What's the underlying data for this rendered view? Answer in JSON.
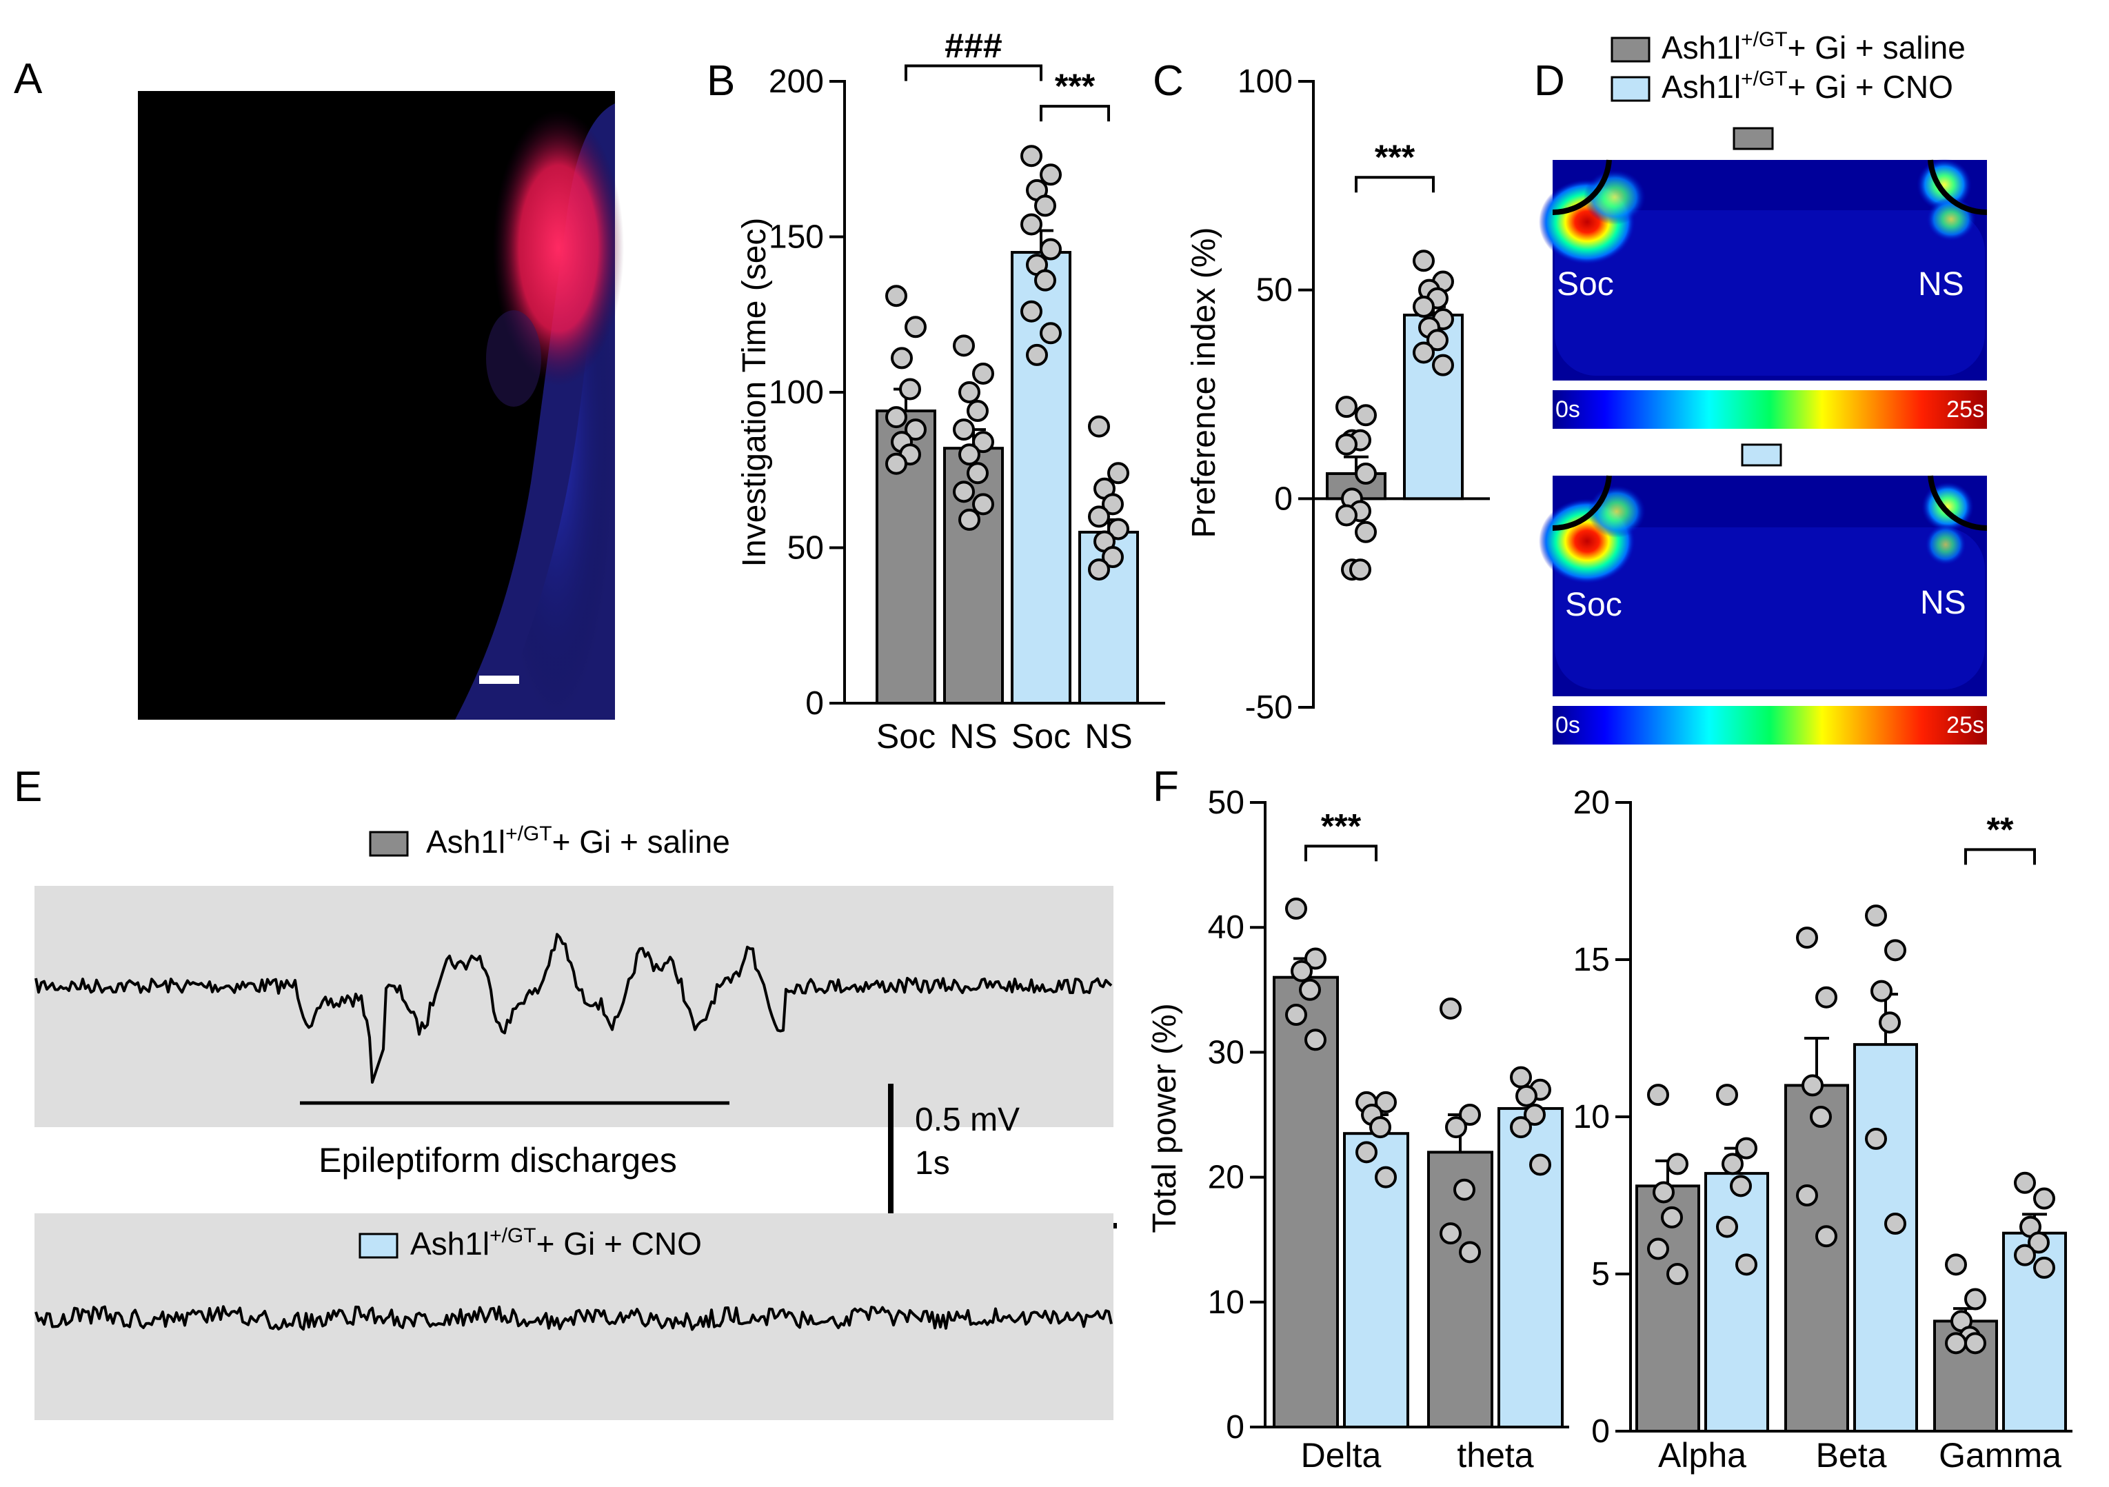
{
  "colors": {
    "saline": "#8c8c8c",
    "cno": "#bfe3f9",
    "trace_bg": "#dedede",
    "dot_fill": "#c8c8c8",
    "stroke": "#000000"
  },
  "legend": {
    "saline_prefix": "Ash1l",
    "saline_sup": "+/GT",
    "saline_suffix": "+ Gi + saline",
    "cno_prefix": "Ash1l",
    "cno_sup": "+/GT",
    "cno_suffix": "+ Gi + CNO"
  },
  "panels": {
    "A": {
      "label": "A",
      "image": "fluorescence brain section"
    },
    "D": {
      "label": "D",
      "heatmaps": [
        {
          "group": "saline",
          "left_label": "Soc",
          "right_label": "NS",
          "scale_min": "0s",
          "scale_max": "25s"
        },
        {
          "group": "cno",
          "left_label": "Soc",
          "right_label": "NS",
          "scale_min": "0s",
          "scale_max": "25s"
        }
      ]
    },
    "E": {
      "label": "E",
      "annotation": "Epileptiform discharges",
      "scalebar_v": "0.5 mV",
      "scalebar_h": "1s"
    }
  },
  "chart_data": [
    {
      "panel": "B",
      "type": "bar",
      "title": "",
      "xlabel": "",
      "ylabel": "Investigation Time (sec)",
      "ylim": [
        0,
        200
      ],
      "yticks": [
        0,
        50,
        100,
        150,
        200
      ],
      "categories": [
        "Soc",
        "NS",
        "Soc",
        "NS"
      ],
      "groups": [
        "saline",
        "saline",
        "cno",
        "cno"
      ],
      "values": [
        94,
        82,
        145,
        55
      ],
      "errors": [
        7,
        6,
        7,
        4
      ],
      "points": [
        [
          131,
          121,
          111,
          101,
          92,
          88,
          84,
          80,
          77
        ],
        [
          115,
          106,
          100,
          94,
          88,
          84,
          80,
          74,
          68,
          64,
          59
        ],
        [
          176,
          170,
          165,
          160,
          154,
          146,
          141,
          136,
          126,
          119,
          112
        ],
        [
          89,
          74,
          69,
          64,
          60,
          56,
          52,
          47,
          43
        ]
      ],
      "significance": [
        {
          "from": 0,
          "to": 2,
          "label": "###",
          "level": 205
        },
        {
          "from": 2,
          "to": 3,
          "label": "***",
          "level": 192
        }
      ]
    },
    {
      "panel": "C",
      "type": "bar",
      "title": "",
      "xlabel": "",
      "ylabel": "Preference index (%)",
      "ylim": [
        -50,
        100
      ],
      "yticks": [
        -50,
        0,
        50,
        100
      ],
      "categories": [
        "",
        ""
      ],
      "groups": [
        "saline",
        "cno"
      ],
      "values": [
        6,
        44
      ],
      "errors": [
        4,
        2
      ],
      "points": [
        [
          22,
          20,
          14,
          14,
          13,
          6,
          0,
          -3,
          -4,
          -8,
          -17,
          -17
        ],
        [
          57,
          52,
          50,
          48,
          46,
          43,
          41,
          38,
          35,
          32
        ]
      ],
      "significance": [
        {
          "from": 0,
          "to": 1,
          "label": "***",
          "level": 77
        }
      ]
    },
    {
      "panel": "F",
      "type": "bar",
      "title": "",
      "xlabel": "",
      "ylabel": "Total power (%)",
      "ylim": [
        0,
        50
      ],
      "yticks": [
        0,
        10,
        20,
        30,
        40,
        50
      ],
      "categories": [
        "Delta",
        "theta"
      ],
      "series": [
        {
          "name": "saline",
          "values": [
            36,
            22
          ],
          "errors": [
            1.5,
            3
          ]
        },
        {
          "name": "cno",
          "values": [
            23.5,
            25.5
          ],
          "errors": [
            1.5,
            1.5
          ]
        }
      ],
      "points": [
        [
          [
            41.5,
            37.5,
            36.5,
            35,
            33,
            31
          ],
          [
            33.5,
            25,
            24,
            19,
            15.5,
            14
          ]
        ],
        [
          [
            26,
            26,
            25,
            24,
            22,
            20
          ],
          [
            28,
            27,
            26.5,
            25,
            24,
            21
          ]
        ]
      ],
      "significance": [
        {
          "from": [
            0,
            "saline"
          ],
          "to": [
            0,
            "cno"
          ],
          "label": "***",
          "level": 46.5
        }
      ]
    },
    {
      "panel": "F2",
      "type": "bar",
      "title": "",
      "xlabel": "",
      "ylabel": "",
      "ylim": [
        0,
        20
      ],
      "yticks": [
        0,
        5,
        10,
        15,
        20
      ],
      "categories": [
        "Alpha",
        "Beta",
        "Gamma"
      ],
      "series": [
        {
          "name": "saline",
          "values": [
            7.8,
            11,
            3.5
          ],
          "errors": [
            0.8,
            1.5,
            0.4
          ]
        },
        {
          "name": "cno",
          "values": [
            8.2,
            12.3,
            6.3
          ],
          "errors": [
            0.8,
            1.6,
            0.6
          ]
        }
      ],
      "points": [
        [
          [
            10.7,
            8.5,
            7.6,
            6.8,
            5.8,
            5
          ],
          [
            15.7,
            13.8,
            11,
            10,
            7.5,
            6.2
          ],
          [
            5.3,
            4.2,
            3.5,
            3,
            2.8,
            2.8
          ]
        ],
        [
          [
            10.7,
            9,
            8.5,
            7.8,
            6.5,
            5.3
          ],
          [
            16.4,
            15.3,
            14,
            13,
            9.3,
            6.6
          ],
          [
            7.9,
            7.4,
            6.5,
            6,
            5.6,
            5.2
          ]
        ]
      ],
      "significance": [
        {
          "from": [
            2,
            "saline"
          ],
          "to": [
            2,
            "cno"
          ],
          "label": "**",
          "level": 18.5
        }
      ]
    }
  ]
}
